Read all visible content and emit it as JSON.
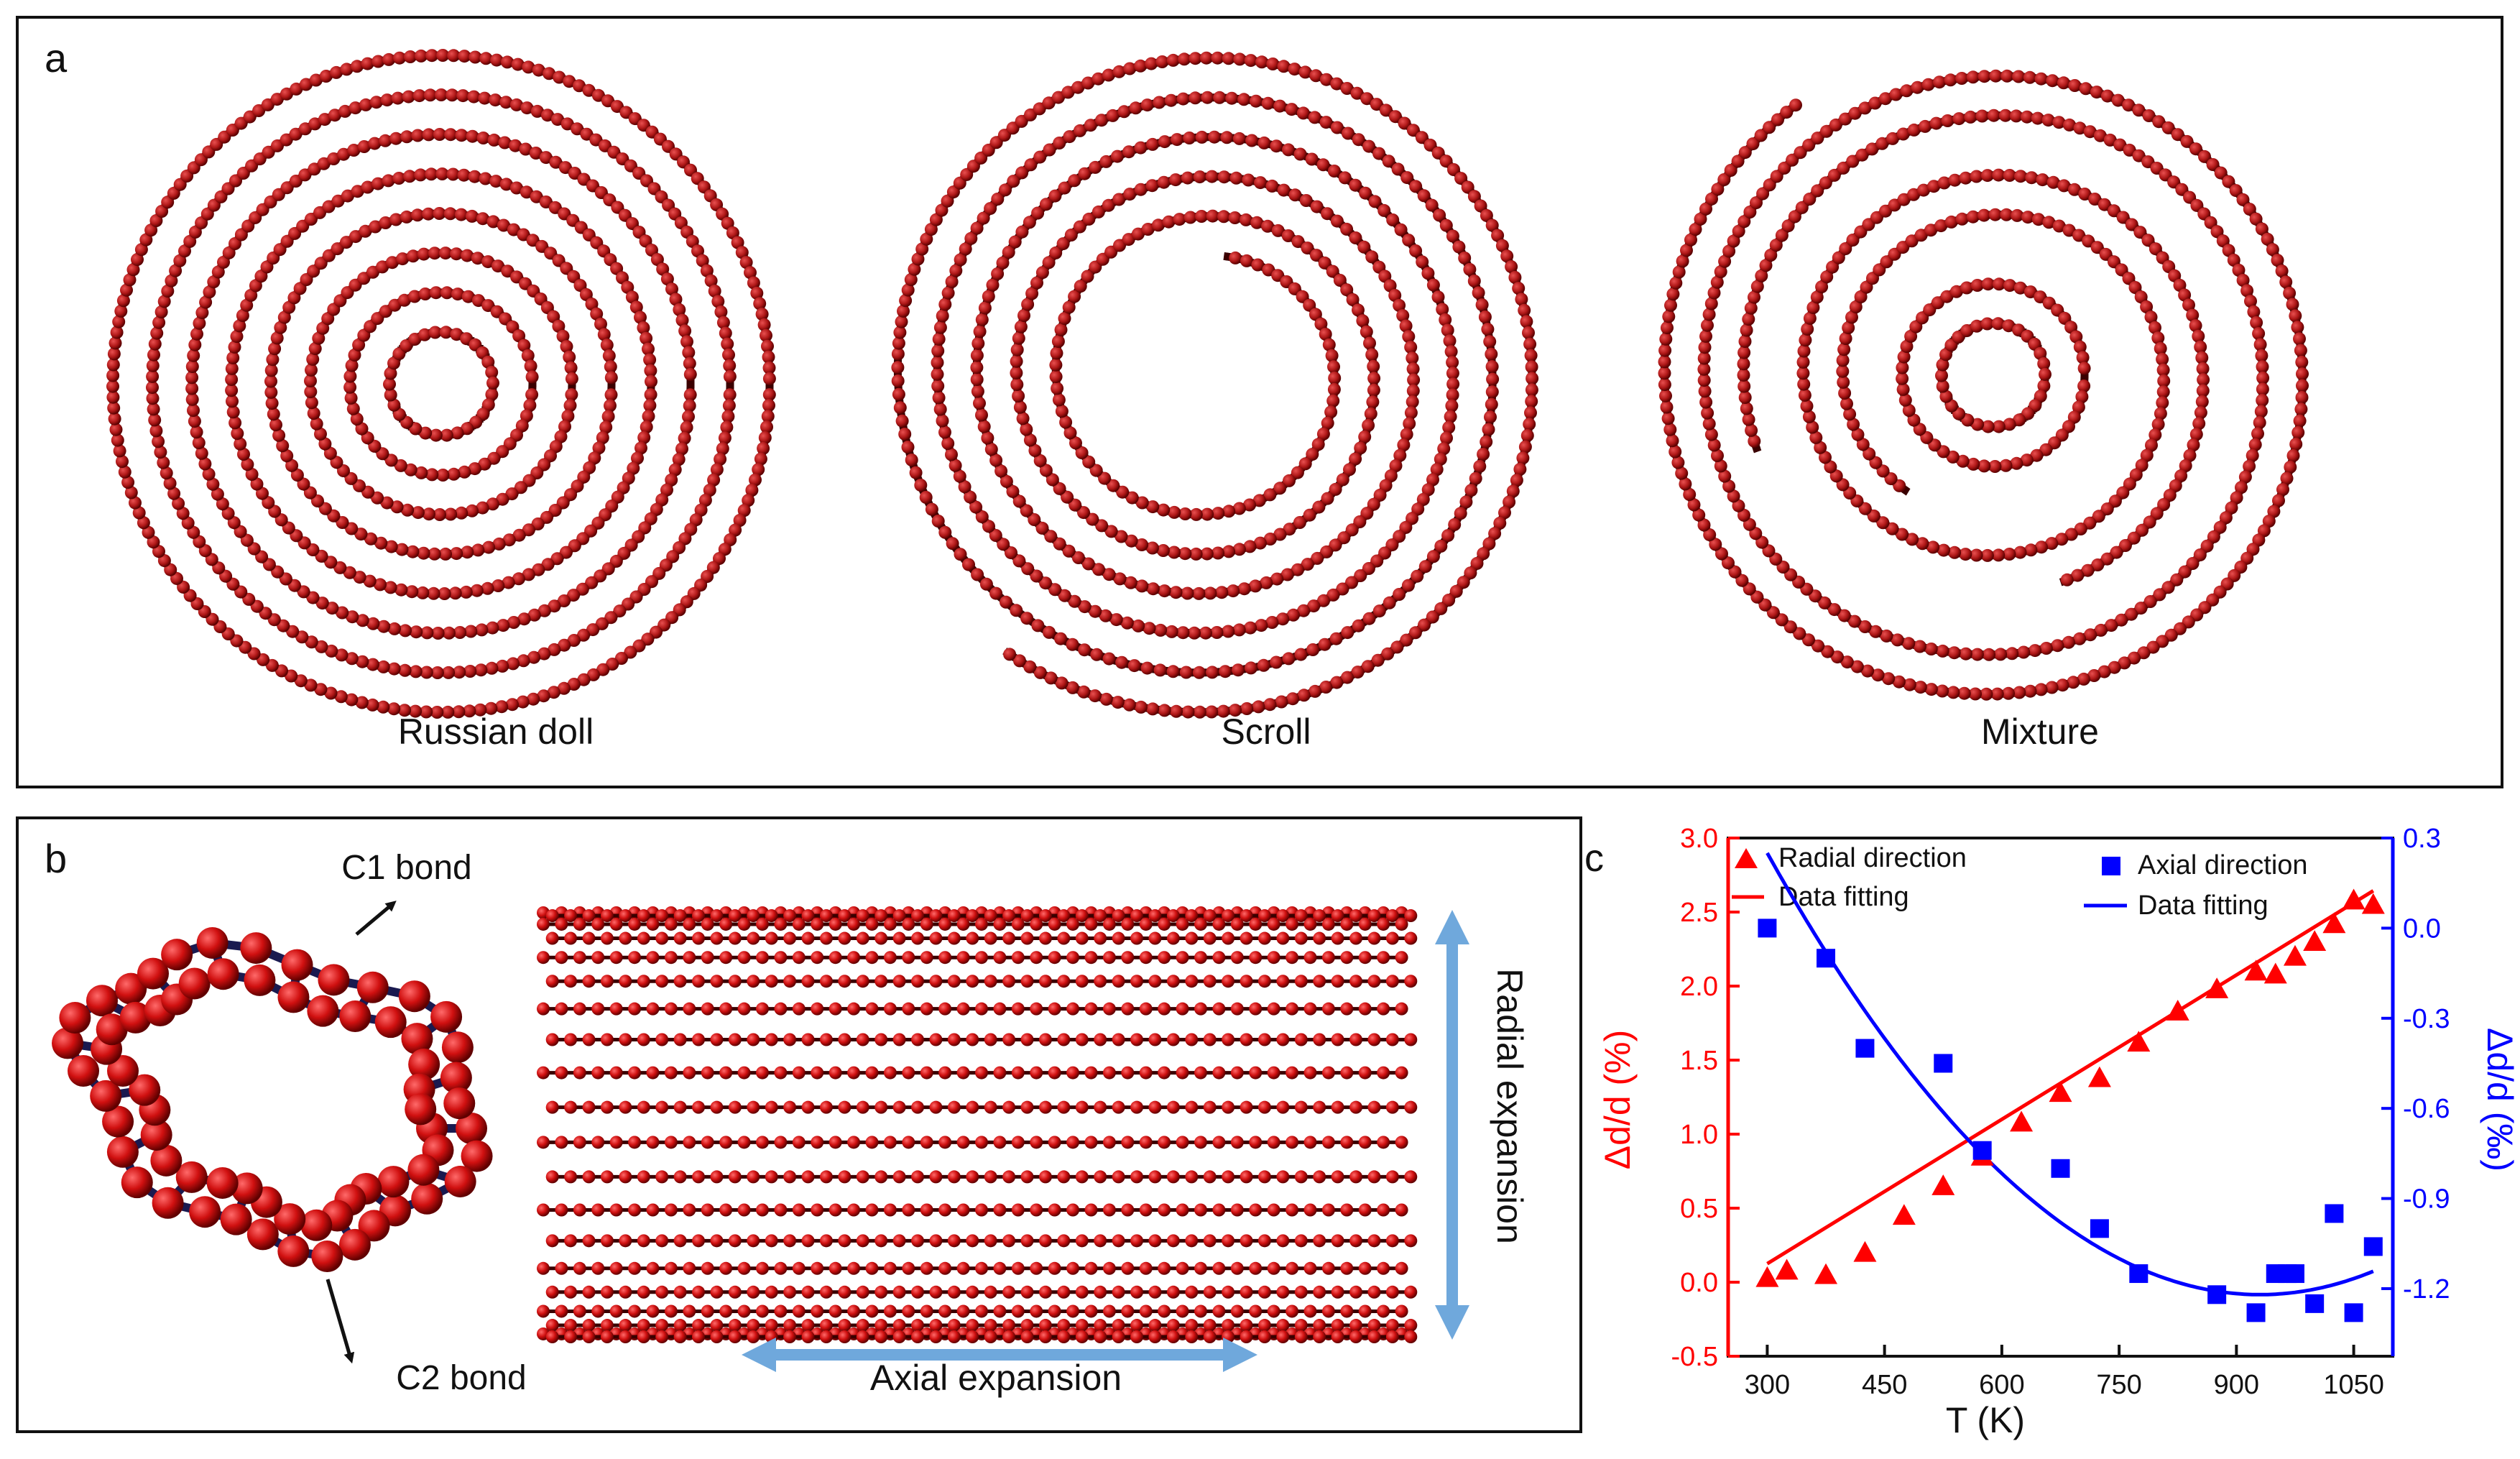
{
  "panel_a": {
    "label": "a",
    "captions": [
      "Russian doll",
      "Scroll",
      "Mixture"
    ]
  },
  "panel_b": {
    "label": "b",
    "c1_label": "C1 bond",
    "c2_label": "C2 bond",
    "radial_label": "Radial expansion",
    "axial_label": "Axial expansion"
  },
  "colors": {
    "atom": "#b01818",
    "atom_dark": "#5a0000",
    "bond": "#1a1a50",
    "arrow": "#6fa8dc",
    "radial": "#ff0000",
    "axial": "#0000ff"
  },
  "chart_data": {
    "type": "scatter",
    "panel_label": "c",
    "xlabel": "T (K)",
    "ylabel_left": "Δd/d (%)",
    "ylabel_right": "Δd/d (‰)",
    "xlim": [
      250,
      1100
    ],
    "ylim_left": [
      -0.5,
      3.0
    ],
    "ylim_right": [
      -1.425,
      0.3
    ],
    "x_ticks": [
      300,
      450,
      600,
      750,
      900,
      1050
    ],
    "y_ticks_left": [
      -0.5,
      0.0,
      0.5,
      1.0,
      1.5,
      2.0,
      2.5,
      3.0
    ],
    "y_ticks_right": [
      -1.2,
      -0.9,
      -0.6,
      -0.3,
      0.0,
      0.3
    ],
    "series": [
      {
        "name": "Radial direction",
        "axis": "left",
        "marker": "triangle",
        "color": "#ff0000",
        "x": [
          300,
          325,
          375,
          425,
          475,
          525,
          575,
          625,
          675,
          725,
          775,
          825,
          875,
          925,
          950,
          975,
          1000,
          1025,
          1050,
          1075
        ],
        "y": [
          0.03,
          0.08,
          0.05,
          0.2,
          0.45,
          0.65,
          0.85,
          1.08,
          1.28,
          1.38,
          1.62,
          1.83,
          1.98,
          2.1,
          2.08,
          2.2,
          2.3,
          2.42,
          2.58,
          2.55
        ]
      },
      {
        "name": "Data fitting",
        "axis": "left",
        "type": "line",
        "color": "#ff0000",
        "fit": "linear",
        "x_range": [
          300,
          1075
        ],
        "params": {
          "intercept": -0.85,
          "slope": 0.00325
        }
      },
      {
        "name": "Axial direction",
        "axis": "right",
        "marker": "square",
        "color": "#0000ff",
        "x": [
          300,
          375,
          425,
          525,
          575,
          675,
          725,
          775,
          875,
          925,
          950,
          965,
          975,
          1000,
          1025,
          1050,
          1075
        ],
        "y": [
          0.0,
          -0.1,
          -0.4,
          -0.45,
          -0.74,
          -0.8,
          -1.0,
          -1.15,
          -1.22,
          -1.28,
          -1.15,
          -1.15,
          -1.15,
          -1.25,
          -0.95,
          -1.28,
          -1.06
        ]
      },
      {
        "name": "Data fitting",
        "axis": "right",
        "type": "line",
        "color": "#0000ff",
        "fit": "quadratic",
        "x_range": [
          300,
          1075
        ],
        "params": {
          "x_min": 930,
          "y_min": -1.22,
          "y_at_300": 0.25
        }
      }
    ]
  }
}
